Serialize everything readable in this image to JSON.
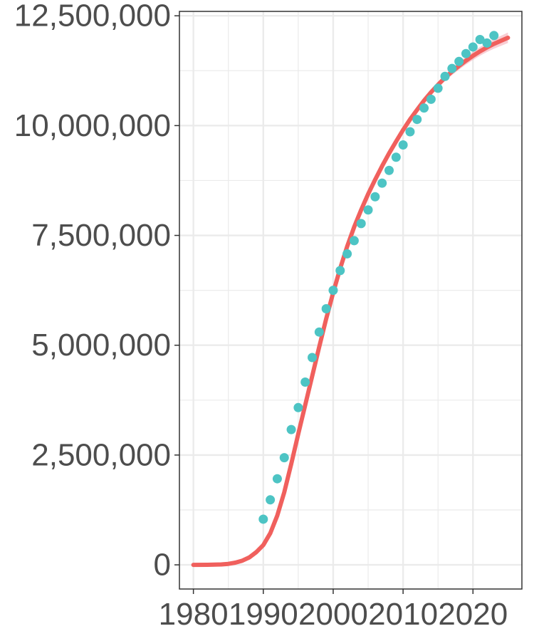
{
  "chart_data": {
    "type": "line",
    "title": "",
    "xlabel": "",
    "ylabel": "",
    "xlim": [
      1978,
      2027
    ],
    "ylim": [
      -550000,
      12600000
    ],
    "x_ticks": [
      1980,
      1990,
      2000,
      2010,
      2020
    ],
    "x_tick_labels": [
      "1980",
      "1990",
      "2000",
      "2010",
      "2020"
    ],
    "y_ticks": [
      0,
      2500000,
      5000000,
      7500000,
      10000000,
      12500000
    ],
    "y_tick_labels": [
      "0",
      "2,500,000",
      "5,000,000",
      "7,500,000",
      "10,000,000",
      "12,500,000"
    ],
    "grid": true,
    "legend": "none",
    "colors": {
      "fit": "#F0605D",
      "band": "#F4A6B0",
      "points": "#4DC4C4",
      "grid": "#EBEBEB",
      "axis": "#333333",
      "text": "#4d4d4d"
    },
    "series": [
      {
        "type": "scatter",
        "x": [
          1990,
          1991,
          1992,
          1993,
          1994,
          1995,
          1996,
          1997,
          1998,
          1999,
          2000,
          2001,
          2002,
          2003,
          2004,
          2005,
          2006,
          2007,
          2008,
          2009,
          2010,
          2011,
          2012,
          2013,
          2014,
          2015,
          2016,
          2017,
          2018,
          2019,
          2020,
          2021,
          2022,
          2023
        ],
        "y": [
          1040000,
          1480000,
          1960000,
          2440000,
          3080000,
          3580000,
          4160000,
          4720000,
          5300000,
          5830000,
          6250000,
          6700000,
          7080000,
          7380000,
          7770000,
          8080000,
          8380000,
          8690000,
          8980000,
          9280000,
          9560000,
          9860000,
          10140000,
          10400000,
          10600000,
          10850000,
          11120000,
          11300000,
          11460000,
          11640000,
          11790000,
          11960000,
          11880000,
          12050000
        ]
      },
      {
        "type": "line",
        "x": [
          1980,
          1982,
          1984,
          1985,
          1986,
          1987,
          1988,
          1989,
          1990,
          1991,
          1992,
          1993,
          1994,
          1995,
          1996,
          1997,
          1998,
          1999,
          2000,
          2001,
          2002,
          2003,
          2004,
          2005,
          2006,
          2007,
          2008,
          2009,
          2010,
          2011,
          2012,
          2013,
          2014,
          2015,
          2016,
          2017,
          2018,
          2019,
          2020,
          2021,
          2022,
          2023,
          2024,
          2025
        ],
        "y": [
          0,
          2000,
          10000,
          22000,
          50000,
          95000,
          170000,
          290000,
          450000,
          720000,
          1120000,
          1650000,
          2300000,
          2980000,
          3640000,
          4300000,
          4960000,
          5600000,
          6200000,
          6750000,
          7250000,
          7690000,
          8080000,
          8440000,
          8770000,
          9080000,
          9370000,
          9640000,
          9900000,
          10140000,
          10360000,
          10570000,
          10760000,
          10930000,
          11090000,
          11230000,
          11360000,
          11480000,
          11590000,
          11690000,
          11780000,
          11860000,
          11930000,
          12000000
        ],
        "band_halfwidth": [
          0,
          0,
          0,
          0,
          0,
          0,
          0,
          0,
          0,
          0,
          0,
          0,
          0,
          0,
          0,
          0,
          0,
          0,
          10000,
          10000,
          15000,
          15000,
          20000,
          20000,
          25000,
          30000,
          35000,
          40000,
          45000,
          50000,
          55000,
          60000,
          65000,
          70000,
          75000,
          80000,
          85000,
          90000,
          95000,
          100000,
          105000,
          110000,
          115000,
          120000
        ]
      }
    ]
  }
}
